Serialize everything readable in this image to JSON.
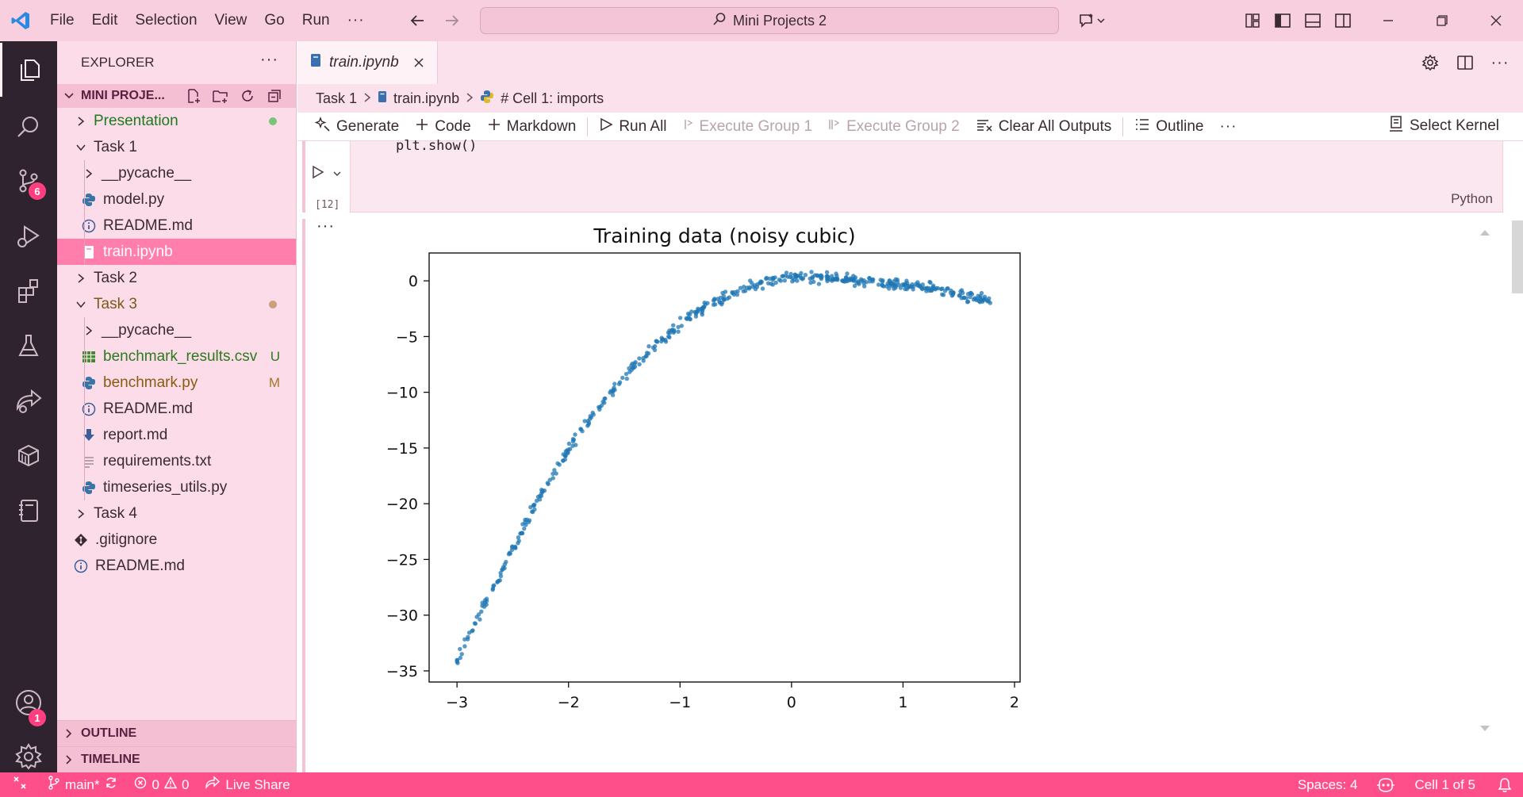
{
  "titlebar": {
    "menu": [
      "File",
      "Edit",
      "Selection",
      "View",
      "Go",
      "Run",
      "···"
    ],
    "search": "Mini Projects 2"
  },
  "activity": {
    "source_control_badge": "6",
    "accounts_badge": "1"
  },
  "sidebar": {
    "title": "EXPLORER",
    "more": "···",
    "project": "MINI PROJE...",
    "tree": [
      {
        "label": "Presentation",
        "depth": 0,
        "kind": "folder",
        "open": false,
        "color": "#1f7a1f",
        "deco": "dot",
        "deco_color": "#7ac47a"
      },
      {
        "label": "Task 1",
        "depth": 0,
        "kind": "folder",
        "open": true
      },
      {
        "label": "__pycache__",
        "depth": 1,
        "kind": "folder",
        "open": false
      },
      {
        "label": "model.py",
        "depth": 1,
        "kind": "py"
      },
      {
        "label": "README.md",
        "depth": 1,
        "kind": "info"
      },
      {
        "label": "train.ipynb",
        "depth": 1,
        "kind": "nb",
        "selected": true
      },
      {
        "label": "Task 2",
        "depth": 0,
        "kind": "folder",
        "open": false
      },
      {
        "label": "Task 3",
        "depth": 0,
        "kind": "folder",
        "open": true,
        "color": "#7a5a1a",
        "deco": "dot",
        "deco_color": "#caa07a"
      },
      {
        "label": "__pycache__",
        "depth": 1,
        "kind": "folder",
        "open": false
      },
      {
        "label": "benchmark_results.csv",
        "depth": 1,
        "kind": "csv",
        "color": "#2c7a1f",
        "deco": "U",
        "deco_color": "#2c7a1f"
      },
      {
        "label": "benchmark.py",
        "depth": 1,
        "kind": "py",
        "color": "#8a5a10",
        "deco": "M",
        "deco_color": "#a5782c"
      },
      {
        "label": "README.md",
        "depth": 1,
        "kind": "info"
      },
      {
        "label": "report.md",
        "depth": 1,
        "kind": "down"
      },
      {
        "label": "requirements.txt",
        "depth": 1,
        "kind": "txt"
      },
      {
        "label": "timeseries_utils.py",
        "depth": 1,
        "kind": "py"
      },
      {
        "label": "Task 4",
        "depth": 0,
        "kind": "folder",
        "open": false
      },
      {
        "label": ".gitignore",
        "depth": 0,
        "kind": "git"
      },
      {
        "label": "README.md",
        "depth": 0,
        "kind": "info"
      }
    ],
    "outline": "OUTLINE",
    "timeline": "TIMELINE"
  },
  "editor": {
    "tab": "train.ipynb",
    "breadcrumb": [
      "Task 1",
      "train.ipynb",
      "# Cell 1: imports"
    ],
    "toolbar": {
      "generate": "Generate",
      "code": "Code",
      "markdown": "Markdown",
      "run_all": "Run All",
      "exec_group_1": "Execute Group 1",
      "exec_group_2": "Execute Group 2",
      "clear": "Clear All Outputs",
      "outline": "Outline",
      "more": "···",
      "kernel": "Select Kernel"
    },
    "cell": {
      "code": "plt.show()",
      "exec_count": "[12]",
      "language": "Python"
    },
    "output_more": "···"
  },
  "chart_data": {
    "type": "scatter",
    "title": "Training data (noisy cubic)",
    "xlabel": "",
    "ylabel": "",
    "xlim": [
      -3.25,
      2.05
    ],
    "ylim": [
      -36,
      2.5
    ],
    "xticks": [
      "−3",
      "−2",
      "−1",
      "0",
      "1",
      "2"
    ],
    "yticks": [
      "0",
      "−5",
      "−10",
      "−15",
      "−20",
      "−25",
      "−30",
      "−35"
    ],
    "xtick_values": [
      -3,
      -2,
      -1,
      0,
      1,
      2
    ],
    "ytick_values": [
      0,
      -5,
      -10,
      -15,
      -20,
      -25,
      -30,
      -35
    ],
    "color": "#1f77b4",
    "x_range": [
      -3.0,
      1.8
    ],
    "points": [
      [
        -3.0,
        -34.0
      ],
      [
        -2.8,
        -30.0
      ],
      [
        -2.6,
        -26.0
      ],
      [
        -2.4,
        -22.0
      ],
      [
        -2.2,
        -18.3
      ],
      [
        -2.0,
        -15.2
      ],
      [
        -1.8,
        -12.3
      ],
      [
        -1.6,
        -9.8
      ],
      [
        -1.4,
        -7.6
      ],
      [
        -1.2,
        -5.6
      ],
      [
        -1.0,
        -3.9
      ],
      [
        -0.8,
        -2.5
      ],
      [
        -0.6,
        -1.4
      ],
      [
        -0.4,
        -0.6
      ],
      [
        -0.2,
        -0.1
      ],
      [
        0.0,
        0.3
      ],
      [
        0.2,
        0.3
      ],
      [
        0.4,
        0.2
      ],
      [
        0.6,
        0.0
      ],
      [
        0.8,
        -0.2
      ],
      [
        1.0,
        -0.4
      ],
      [
        1.2,
        -0.6
      ],
      [
        1.4,
        -1.0
      ],
      [
        1.6,
        -1.4
      ],
      [
        1.8,
        -1.8
      ]
    ]
  },
  "statusbar": {
    "branch": "main*",
    "errors": "0",
    "warnings": "0",
    "live_share": "Live Share",
    "spaces": "Spaces: 4",
    "cell": "Cell 1 of 5"
  }
}
